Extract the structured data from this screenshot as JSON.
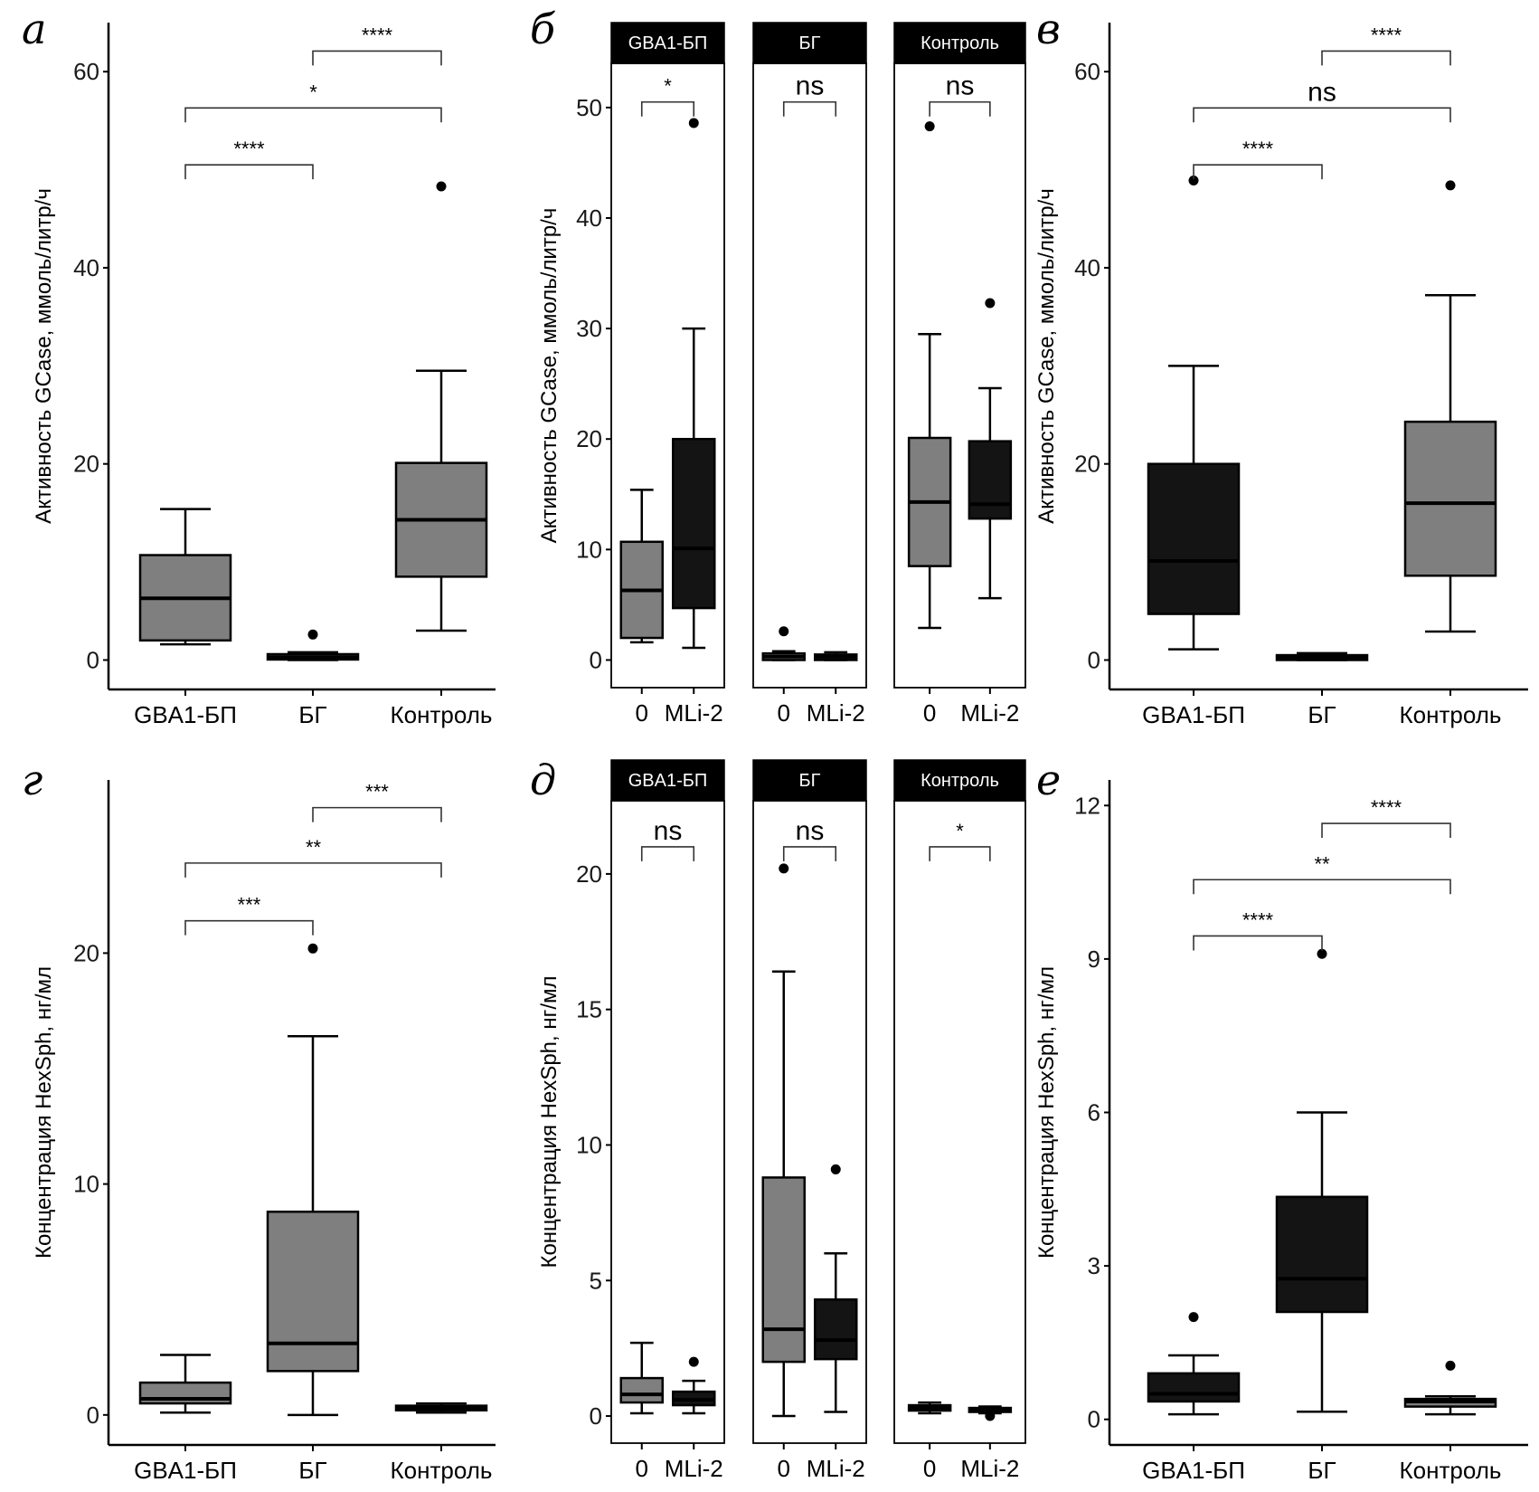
{
  "figure": {
    "colors": {
      "grey_box": "#7f7f7f",
      "dark_box": "#141414",
      "strip_bg": "#000000",
      "line": "#000000"
    }
  },
  "chart_data": [
    {
      "id": "a",
      "panel_label": "а",
      "type": "boxplot",
      "ylabel": "Активность GCase, ммоль/литр/ч",
      "ylim": [
        -3,
        65
      ],
      "yticks": [
        0,
        20,
        40,
        60
      ],
      "categories": [
        "GBA1-БП",
        "БГ",
        "Контроль"
      ],
      "boxes": [
        {
          "category": "GBA1-БП",
          "fill": "grey",
          "whisker_low": 1.6,
          "q1": 2.0,
          "median": 6.3,
          "q3": 10.7,
          "whisker_high": 15.4,
          "outliers": []
        },
        {
          "category": "БГ",
          "fill": "grey",
          "whisker_low": 0.0,
          "q1": 0.05,
          "median": 0.3,
          "q3": 0.6,
          "whisker_high": 0.8,
          "outliers": [
            2.6
          ]
        },
        {
          "category": "Контроль",
          "fill": "grey",
          "whisker_low": 3.0,
          "q1": 8.5,
          "median": 14.3,
          "q3": 20.1,
          "whisker_high": 29.5,
          "outliers": [
            48.3
          ]
        }
      ],
      "comparisons": [
        {
          "from": "GBA1-БП",
          "to": "БГ",
          "y": 50.5,
          "label": "****"
        },
        {
          "from": "GBA1-БП",
          "to": "Контроль",
          "y": 56.3,
          "label": "*"
        },
        {
          "from": "БГ",
          "to": "Контроль",
          "y": 62.1,
          "label": "****"
        }
      ]
    },
    {
      "id": "b",
      "panel_label": "б",
      "type": "faceted-boxplot",
      "ylabel": "Активность GCase, ммоль/литр/ч",
      "ylim": [
        -2.5,
        54
      ],
      "yticks": [
        0,
        10,
        20,
        30,
        40,
        50
      ],
      "facets": [
        {
          "strip": "GBA1-БП",
          "categories": [
            "0",
            "MLi-2"
          ],
          "boxes": [
            {
              "category": "0",
              "fill": "grey",
              "whisker_low": 1.6,
              "q1": 2.0,
              "median": 6.3,
              "q3": 10.7,
              "whisker_high": 15.4,
              "outliers": []
            },
            {
              "category": "MLi-2",
              "fill": "dark",
              "whisker_low": 1.1,
              "q1": 4.7,
              "median": 10.1,
              "q3": 20.0,
              "whisker_high": 30.0,
              "outliers": [
                48.6
              ]
            }
          ],
          "comparison": {
            "y": 50.5,
            "label": "*"
          }
        },
        {
          "strip": "БГ",
          "categories": [
            "0",
            "MLi-2"
          ],
          "boxes": [
            {
              "category": "0",
              "fill": "grey",
              "whisker_low": 0.0,
              "q1": 0.0,
              "median": 0.3,
              "q3": 0.6,
              "whisker_high": 0.8,
              "outliers": [
                2.6
              ]
            },
            {
              "category": "MLi-2",
              "fill": "dark",
              "whisker_low": 0.0,
              "q1": 0.0,
              "median": 0.3,
              "q3": 0.5,
              "whisker_high": 0.7,
              "outliers": []
            }
          ],
          "comparison": {
            "y": 50.5,
            "label": "ns"
          }
        },
        {
          "strip": "Контроль",
          "categories": [
            "0",
            "MLi-2"
          ],
          "boxes": [
            {
              "category": "0",
              "fill": "grey",
              "whisker_low": 2.9,
              "q1": 8.5,
              "median": 14.3,
              "q3": 20.1,
              "whisker_high": 29.5,
              "outliers": [
                48.3
              ]
            },
            {
              "category": "MLi-2",
              "fill": "dark",
              "whisker_low": 5.6,
              "q1": 12.8,
              "median": 14.1,
              "q3": 19.8,
              "whisker_high": 24.6,
              "outliers": [
                32.3
              ]
            }
          ],
          "comparison": {
            "y": 50.5,
            "label": "ns"
          }
        }
      ]
    },
    {
      "id": "c",
      "panel_label": "в",
      "type": "boxplot",
      "ylabel": "Активность GCase, ммоль/литр/ч",
      "ylim": [
        -3,
        65
      ],
      "yticks": [
        0,
        20,
        40,
        60
      ],
      "categories": [
        "GBA1-БП",
        "БГ",
        "Контроль"
      ],
      "boxes": [
        {
          "category": "GBA1-БП",
          "fill": "dark",
          "whisker_low": 1.1,
          "q1": 4.7,
          "median": 10.1,
          "q3": 20.0,
          "whisker_high": 30.0,
          "outliers": [
            48.9
          ]
        },
        {
          "category": "БГ",
          "fill": "dark",
          "whisker_low": 0.0,
          "q1": 0.0,
          "median": 0.3,
          "q3": 0.5,
          "whisker_high": 0.7,
          "outliers": []
        },
        {
          "category": "Контроль",
          "fill": "grey",
          "whisker_low": 2.9,
          "q1": 8.6,
          "median": 16.0,
          "q3": 24.3,
          "whisker_high": 37.2,
          "outliers": [
            48.4
          ]
        }
      ],
      "comparisons": [
        {
          "from": "GBA1-БП",
          "to": "БГ",
          "y": 50.5,
          "label": "****"
        },
        {
          "from": "GBA1-БП",
          "to": "Контроль",
          "y": 56.3,
          "label": "ns"
        },
        {
          "from": "БГ",
          "to": "Контроль",
          "y": 62.1,
          "label": "****"
        }
      ]
    },
    {
      "id": "d",
      "panel_label": "г",
      "type": "boxplot",
      "ylabel": "Концентрация HexSph, нг/мл",
      "ylim": [
        -1.3,
        27.5
      ],
      "yticks": [
        0,
        10,
        20
      ],
      "categories": [
        "GBA1-БП",
        "БГ",
        "Контроль"
      ],
      "boxes": [
        {
          "category": "GBA1-БП",
          "fill": "grey",
          "whisker_low": 0.1,
          "q1": 0.5,
          "median": 0.7,
          "q3": 1.4,
          "whisker_high": 2.6,
          "outliers": []
        },
        {
          "category": "БГ",
          "fill": "grey",
          "whisker_low": 0.0,
          "q1": 1.9,
          "median": 3.1,
          "q3": 8.8,
          "whisker_high": 16.4,
          "outliers": [
            20.2
          ]
        },
        {
          "category": "Контроль",
          "fill": "grey",
          "whisker_low": 0.1,
          "q1": 0.2,
          "median": 0.3,
          "q3": 0.4,
          "whisker_high": 0.5,
          "outliers": []
        }
      ],
      "comparisons": [
        {
          "from": "GBA1-БП",
          "to": "БГ",
          "y": 21.4,
          "label": "***"
        },
        {
          "from": "GBA1-БП",
          "to": "Контроль",
          "y": 23.9,
          "label": "**"
        },
        {
          "from": "БГ",
          "to": "Контроль",
          "y": 26.3,
          "label": "***"
        }
      ]
    },
    {
      "id": "e",
      "panel_label": "д",
      "type": "faceted-boxplot",
      "ylabel": "Концентрация HexSph, нг/мл",
      "ylim": [
        -1.0,
        22.7
      ],
      "yticks": [
        0,
        5,
        10,
        15,
        20
      ],
      "facets": [
        {
          "strip": "GBA1-БП",
          "categories": [
            "0",
            "MLi-2"
          ],
          "boxes": [
            {
              "category": "0",
              "fill": "grey",
              "whisker_low": 0.1,
              "q1": 0.5,
              "median": 0.8,
              "q3": 1.4,
              "whisker_high": 2.7,
              "outliers": []
            },
            {
              "category": "MLi-2",
              "fill": "dark",
              "whisker_low": 0.1,
              "q1": 0.4,
              "median": 0.6,
              "q3": 0.9,
              "whisker_high": 1.3,
              "outliers": [
                2.0
              ]
            }
          ],
          "comparison": {
            "y": 21.0,
            "label": "ns"
          }
        },
        {
          "strip": "БГ",
          "categories": [
            "0",
            "MLi-2"
          ],
          "boxes": [
            {
              "category": "0",
              "fill": "grey",
              "whisker_low": 0.0,
              "q1": 2.0,
              "median": 3.2,
              "q3": 8.8,
              "whisker_high": 16.4,
              "outliers": [
                20.2
              ]
            },
            {
              "category": "MLi-2",
              "fill": "dark",
              "whisker_low": 0.15,
              "q1": 2.1,
              "median": 2.8,
              "q3": 4.3,
              "whisker_high": 6.0,
              "outliers": [
                9.1
              ]
            }
          ],
          "comparison": {
            "y": 21.0,
            "label": "ns"
          }
        },
        {
          "strip": "Контроль",
          "categories": [
            "0",
            "MLi-2"
          ],
          "boxes": [
            {
              "category": "0",
              "fill": "grey",
              "whisker_low": 0.1,
              "q1": 0.2,
              "median": 0.3,
              "q3": 0.4,
              "whisker_high": 0.5,
              "outliers": []
            },
            {
              "category": "MLi-2",
              "fill": "dark",
              "whisker_low": 0.1,
              "q1": 0.15,
              "median": 0.25,
              "q3": 0.3,
              "whisker_high": 0.35,
              "outliers": [
                0.0
              ]
            }
          ],
          "comparison": {
            "y": 21.0,
            "label": "*"
          }
        }
      ]
    },
    {
      "id": "f",
      "panel_label": "е",
      "type": "boxplot",
      "ylabel": "Концентрация HexSph, нг/мл",
      "ylim": [
        -0.5,
        12.5
      ],
      "yticks": [
        0,
        3,
        6,
        9,
        12
      ],
      "categories": [
        "GBA1-БП",
        "БГ",
        "Контроль"
      ],
      "boxes": [
        {
          "category": "GBA1-БП",
          "fill": "dark",
          "whisker_low": 0.1,
          "q1": 0.35,
          "median": 0.5,
          "q3": 0.9,
          "whisker_high": 1.25,
          "outliers": [
            2.0
          ]
        },
        {
          "category": "БГ",
          "fill": "dark",
          "whisker_low": 0.15,
          "q1": 2.1,
          "median": 2.75,
          "q3": 4.35,
          "whisker_high": 6.0,
          "outliers": [
            9.1
          ]
        },
        {
          "category": "Контроль",
          "fill": "grey",
          "whisker_low": 0.1,
          "q1": 0.25,
          "median": 0.35,
          "q3": 0.4,
          "whisker_high": 0.45,
          "outliers": [
            1.05
          ]
        }
      ],
      "comparisons": [
        {
          "from": "GBA1-БП",
          "to": "БГ",
          "y": 9.45,
          "label": "****"
        },
        {
          "from": "GBA1-БП",
          "to": "Контроль",
          "y": 10.55,
          "label": "**"
        },
        {
          "from": "БГ",
          "to": "Контроль",
          "y": 11.65,
          "label": "****"
        }
      ]
    }
  ]
}
